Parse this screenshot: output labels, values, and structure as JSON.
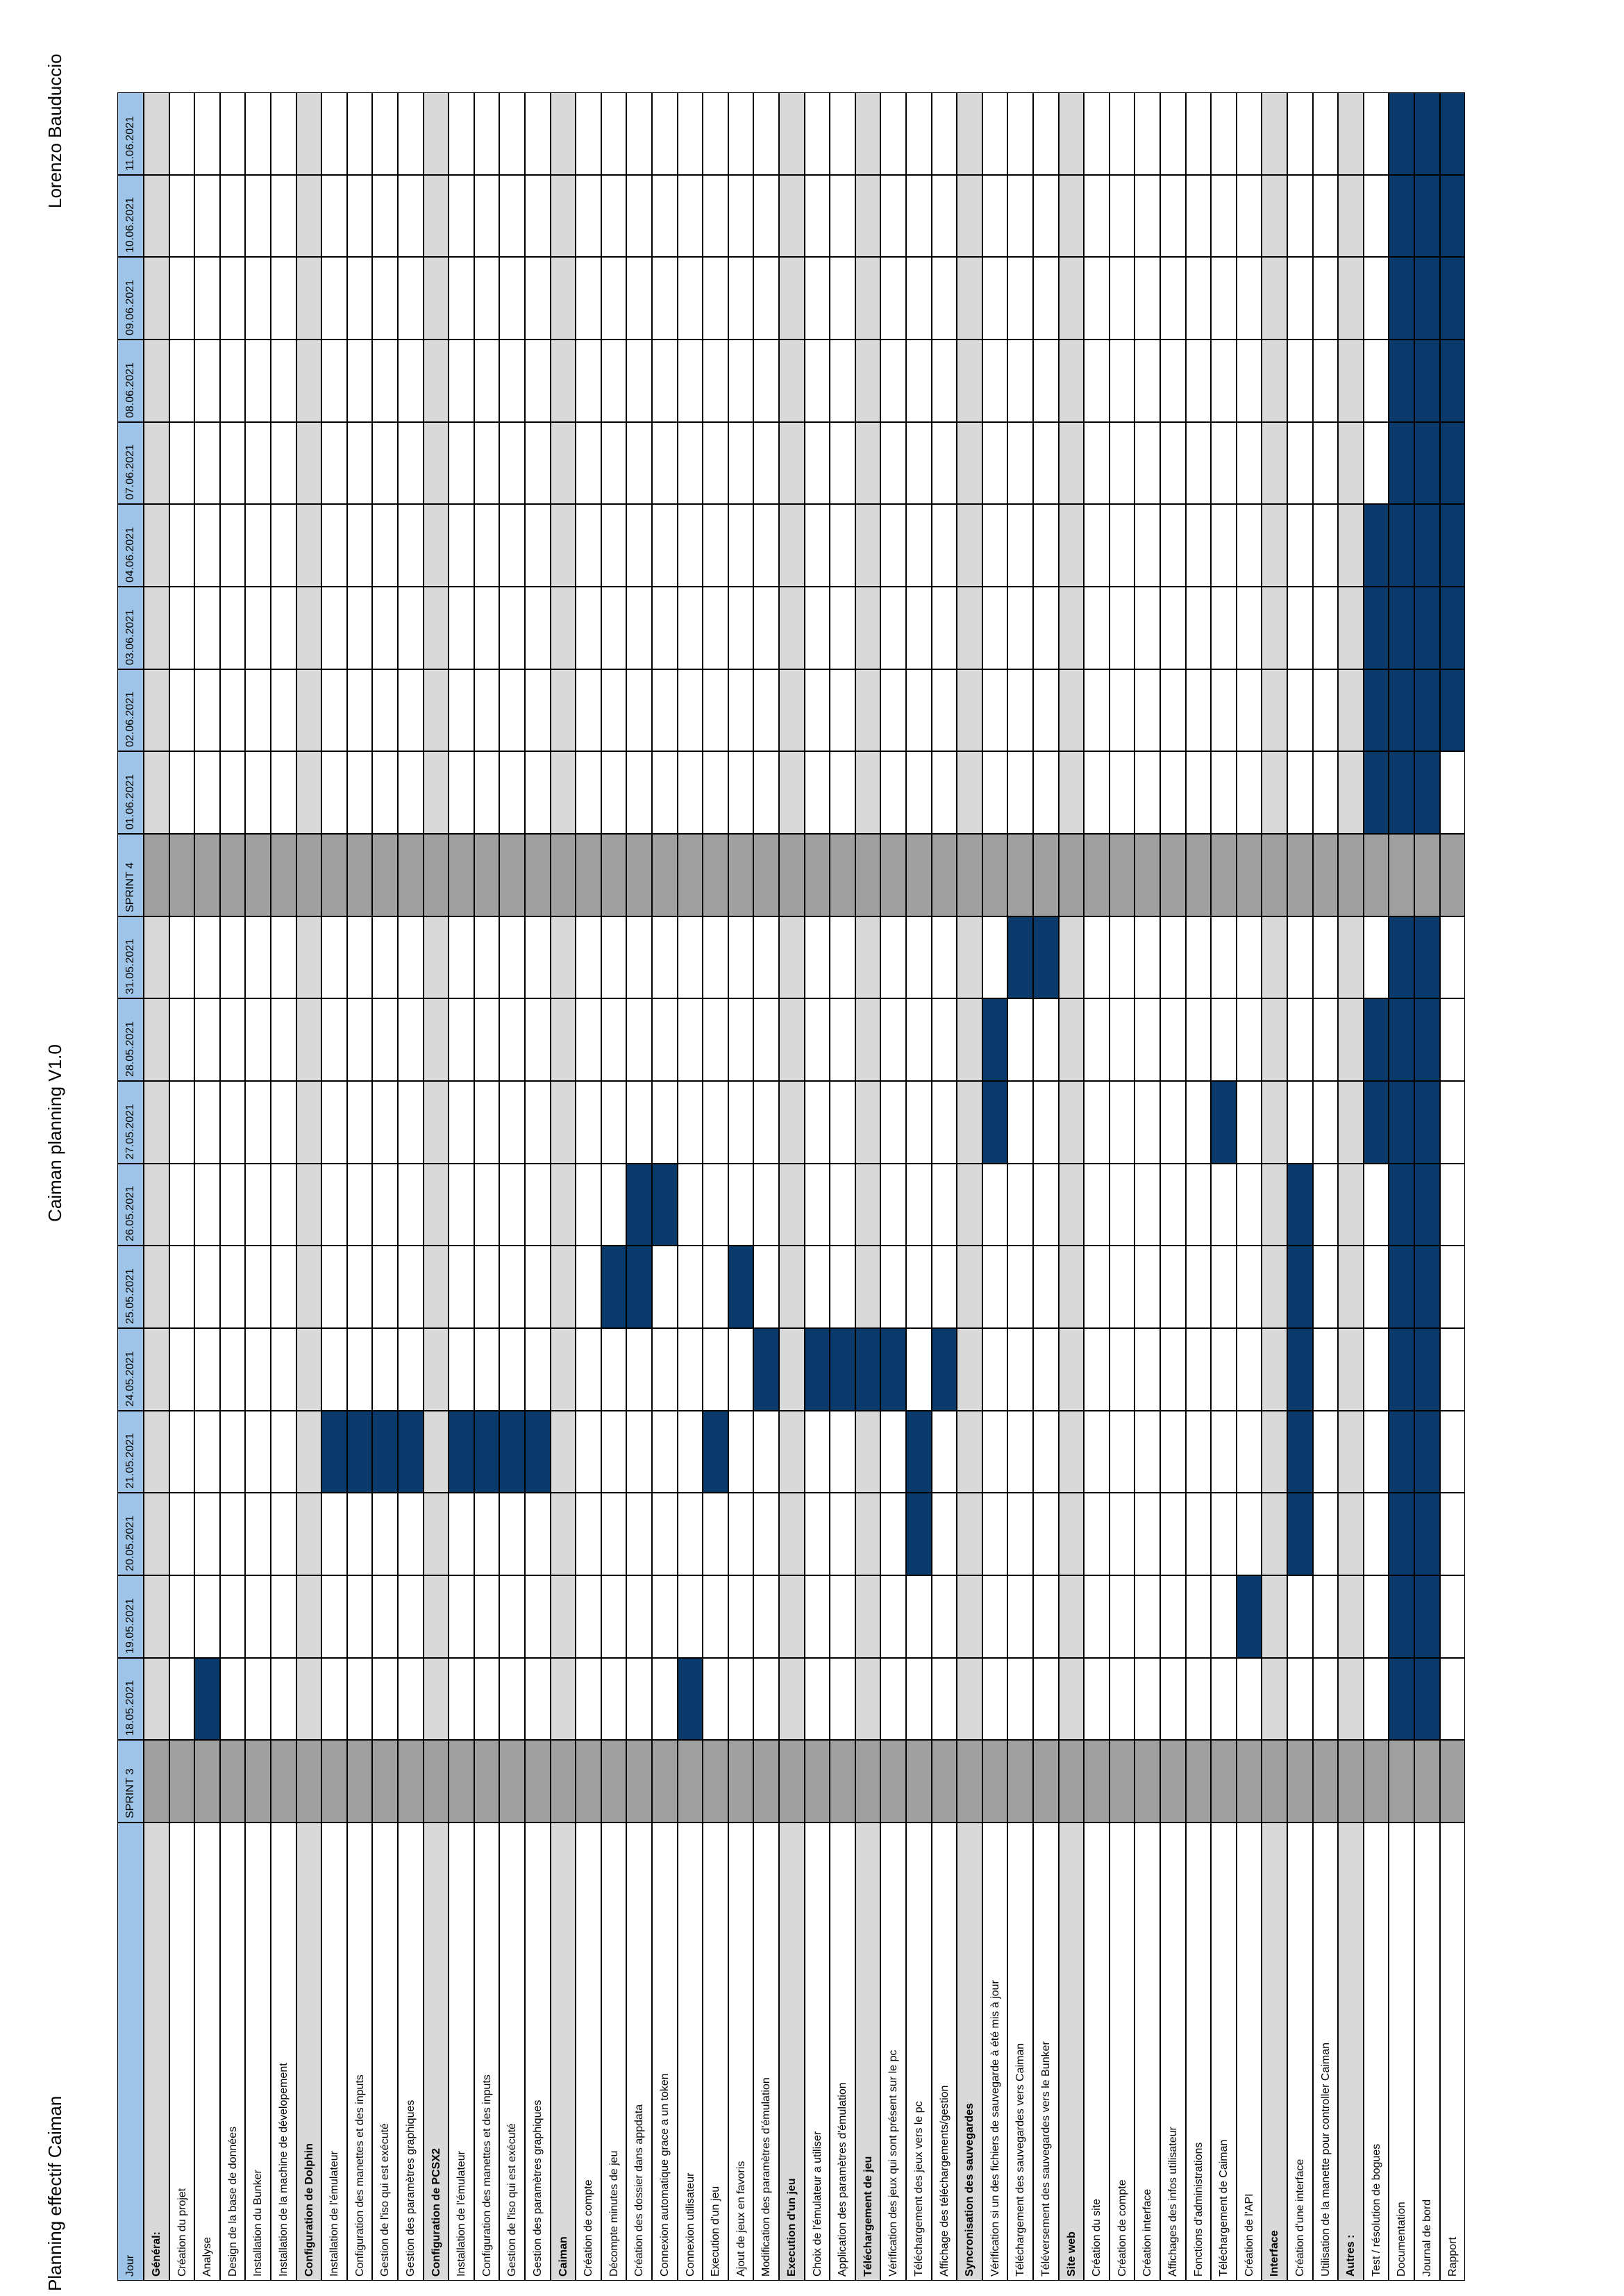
{
  "page": {
    "left_title": "Planning effectif Caiman",
    "center_title": "Caiman planning V1.0",
    "right_title": "Lorenzo Bauduccio"
  },
  "colors": {
    "header_blue": "#9ec5e8",
    "section_gray": "#d9d9d9",
    "sprint_gray": "#a0a0a0",
    "task_fill": "#0a3a6b",
    "grid_line": "#000000"
  },
  "columns_header": "Jour",
  "dates": [
    "SPRINT 3",
    "18.05.2021",
    "19.05.2021",
    "20.05.2021",
    "21.05.2021",
    "24.05.2021",
    "25.05.2021",
    "26.05.2021",
    "27.05.2021",
    "28.05.2021",
    "31.05.2021",
    "SPRINT 4",
    "01.06.2021",
    "02.06.2021",
    "03.06.2021",
    "04.06.2021",
    "07.06.2021",
    "08.06.2021",
    "09.06.2021",
    "10.06.2021",
    "11.06.2021"
  ],
  "rows": [
    {
      "label": "Général:",
      "section": true,
      "filled": []
    },
    {
      "label": "Création du projet",
      "section": false,
      "filled": []
    },
    {
      "label": "Analyse",
      "section": false,
      "filled": [
        1
      ]
    },
    {
      "label": "Design de la base de données",
      "section": false,
      "filled": []
    },
    {
      "label": "Installation du Bunker",
      "section": false,
      "filled": []
    },
    {
      "label": "Installation de la machine de dévelopement",
      "section": false,
      "filled": []
    },
    {
      "label": "Configuration de Dolphin",
      "section": true,
      "filled": []
    },
    {
      "label": "Installation de l'émulateur",
      "section": false,
      "filled": [
        4
      ]
    },
    {
      "label": "Configuration des manettes et des inputs",
      "section": false,
      "filled": [
        4
      ]
    },
    {
      "label": "Gestion de l'iso qui est exécuté",
      "section": false,
      "filled": [
        4
      ]
    },
    {
      "label": "Gestion des paramètres graphiques",
      "section": false,
      "filled": [
        4
      ]
    },
    {
      "label": "Configuration de PCSX2",
      "section": true,
      "filled": []
    },
    {
      "label": "Installation de l'émulateur",
      "section": false,
      "filled": [
        4
      ]
    },
    {
      "label": "Configuration des manettes et des inputs",
      "section": false,
      "filled": [
        4
      ]
    },
    {
      "label": "Gestion de l'iso qui est exécuté",
      "section": false,
      "filled": [
        4
      ]
    },
    {
      "label": "Gestion des paramètres graphiques",
      "section": false,
      "filled": [
        4
      ]
    },
    {
      "label": "Caiman",
      "section": true,
      "filled": []
    },
    {
      "label": "Création de compte",
      "section": false,
      "filled": []
    },
    {
      "label": "Décompte minutes de jeu",
      "section": false,
      "filled": [
        6
      ]
    },
    {
      "label": "Création des dossier dans appdata",
      "section": false,
      "filled": [
        6,
        7
      ]
    },
    {
      "label": "Connexion automatique grace a un token",
      "section": false,
      "filled": [
        7
      ]
    },
    {
      "label": "Connexion utilisateur",
      "section": false,
      "filled": [
        1
      ]
    },
    {
      "label": "Execution d'un jeu",
      "section": false,
      "filled": [
        4
      ]
    },
    {
      "label": "Ajout de jeux en favoris",
      "section": false,
      "filled": [
        6
      ]
    },
    {
      "label": "Modification des paramètres d'émulation",
      "section": false,
      "filled": [
        5
      ]
    },
    {
      "label": "Execution d'un jeu",
      "section": true,
      "filled": []
    },
    {
      "label": "Choix de l'émulateur a utiliser",
      "section": false,
      "filled": [
        5
      ]
    },
    {
      "label": "Application des paramètres d'émulation",
      "section": false,
      "filled": [
        5
      ]
    },
    {
      "label": "Téléchargement de jeu",
      "section": true,
      "filled": [
        5
      ]
    },
    {
      "label": "Vérification des jeux qui sont présent sur le pc",
      "section": false,
      "filled": [
        5
      ]
    },
    {
      "label": "Téléchargement des jeux vers le pc",
      "section": false,
      "filled": [
        3,
        4
      ]
    },
    {
      "label": "Affichage des téléchargements/gestion",
      "section": false,
      "filled": [
        5
      ]
    },
    {
      "label": "Syncronisation des sauvegardes",
      "section": true,
      "filled": []
    },
    {
      "label": "Vérification si un des fichiers de sauvegarde à été mis à jour",
      "section": false,
      "filled": [
        8,
        9
      ]
    },
    {
      "label": "Téléchargement des sauvegardes vers Caiman",
      "section": false,
      "filled": [
        10
      ]
    },
    {
      "label": "Téléversement des sauvegardes vers le Bunker",
      "section": false,
      "filled": [
        10
      ]
    },
    {
      "label": "Site web",
      "section": true,
      "filled": []
    },
    {
      "label": "Création du site",
      "section": false,
      "filled": []
    },
    {
      "label": "Création de compte",
      "section": false,
      "filled": []
    },
    {
      "label": "Création interface",
      "section": false,
      "filled": []
    },
    {
      "label": "Affichages des infos utilisateur",
      "section": false,
      "filled": []
    },
    {
      "label": "Fonctions d'administrations",
      "section": false,
      "filled": []
    },
    {
      "label": "Téléchargement de Caiman",
      "section": false,
      "filled": [
        8
      ]
    },
    {
      "label": "Création de l'API",
      "section": false,
      "filled": [
        2
      ]
    },
    {
      "label": "Interface",
      "section": true,
      "filled": []
    },
    {
      "label": "Création d'une interface",
      "section": false,
      "filled": [
        3,
        4,
        5,
        6,
        7
      ]
    },
    {
      "label": "Utilisation de la manette pour controller Caiman",
      "section": false,
      "filled": []
    },
    {
      "label": "Autres :",
      "section": true,
      "filled": []
    },
    {
      "label": "Test / résolution de bogues",
      "section": false,
      "filled": [
        8,
        9,
        12,
        13,
        14,
        15
      ]
    },
    {
      "label": "Documentation",
      "section": false,
      "filled": [
        1,
        2,
        3,
        4,
        5,
        6,
        7,
        8,
        9,
        10,
        12,
        13,
        14,
        15,
        16,
        17,
        18,
        19,
        20
      ]
    },
    {
      "label": "Journal de bord",
      "section": false,
      "filled": [
        1,
        2,
        3,
        4,
        5,
        6,
        7,
        8,
        9,
        10,
        12,
        13,
        14,
        15,
        16,
        17,
        18,
        19,
        20
      ]
    },
    {
      "label": "Rapport",
      "section": false,
      "filled": [
        13,
        14,
        15,
        16,
        17,
        18,
        19,
        20
      ]
    }
  ]
}
